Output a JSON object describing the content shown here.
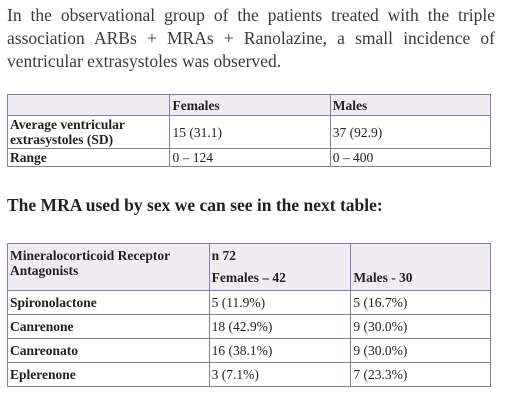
{
  "paragraph": {
    "line1": "In the observational group of the patients treated with the triple",
    "line2": "association ARBs + MRAs + Ranolazine, a small incidence of",
    "line3": "ventricular extrasystoles was observed."
  },
  "table1": {
    "headers": [
      "",
      "Females",
      "Males"
    ],
    "rows": [
      {
        "label": "Average ventricular extrasystoles (SD)",
        "females": "15 (31.1)",
        "males": "37 (92.9)"
      },
      {
        "label": "Range",
        "females": "0 – 124",
        "males": "0 – 400"
      }
    ]
  },
  "heading": "The MRA used by sex we can see in the next table:",
  "table2": {
    "header_label": "Mineralocorticoid Receptor Antagonists",
    "n_total": "n 72",
    "females_header": "Females – 42",
    "males_header": "Males - 30",
    "rows": [
      {
        "drug": "Spironolactone",
        "females": "5 (11.9%)",
        "males": "5 (16.7%)"
      },
      {
        "drug": "Canrenone",
        "females": "18 (42.9%)",
        "males": "9 (30.0%)"
      },
      {
        "drug": "Canreonato",
        "females": "16 (38.1%)",
        "males": "9 (30.0%)"
      },
      {
        "drug": "Eplerenone",
        "females": "3 (7.1%)",
        "males": "7 (23.3%)"
      }
    ]
  }
}
